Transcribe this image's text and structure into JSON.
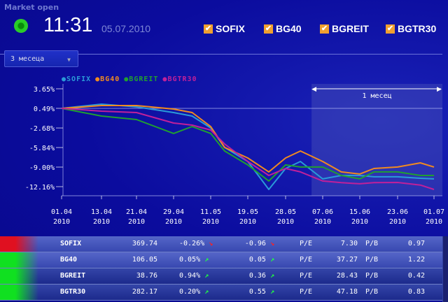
{
  "header": {
    "status": "Market open",
    "status_color": "#30c830",
    "time": "11:31",
    "date": "05.07.2010"
  },
  "toggles": [
    {
      "label": "SOFIX",
      "checked": true
    },
    {
      "label": "BG40",
      "checked": true
    },
    {
      "label": "BGREIT",
      "checked": true
    },
    {
      "label": "BGTR30",
      "checked": true
    }
  ],
  "period_select": {
    "value": "3 месеца"
  },
  "chart_data": {
    "type": "line",
    "range_label": "1 месец",
    "y_ticks": [
      "3.65%",
      "0.49%",
      "-2.68%",
      "-5.84%",
      "-9.00%",
      "-12.16%"
    ],
    "y_tick_values": [
      3.65,
      0.49,
      -2.68,
      -5.84,
      -9.0,
      -12.16
    ],
    "x_ticks": [
      {
        "date": "2010-04-01",
        "day": "01.04",
        "year": "2010"
      },
      {
        "date": "2010-04-13",
        "day": "13.04",
        "year": "2010"
      },
      {
        "date": "2010-04-21",
        "day": "21.04",
        "year": "2010"
      },
      {
        "date": "2010-04-29",
        "day": "29.04",
        "year": "2010"
      },
      {
        "date": "2010-05-11",
        "day": "11.05",
        "year": "2010"
      },
      {
        "date": "2010-05-19",
        "day": "19.05",
        "year": "2010"
      },
      {
        "date": "2010-05-28",
        "day": "28.05",
        "year": "2010"
      },
      {
        "date": "2010-06-07",
        "day": "07.06",
        "year": "2010"
      },
      {
        "date": "2010-06-15",
        "day": "15.06",
        "year": "2010"
      },
      {
        "date": "2010-06-23",
        "day": "23.06",
        "year": "2010"
      },
      {
        "date": "2010-07-01",
        "day": "01.07",
        "year": "2010"
      }
    ],
    "highlight_from": "2010-06-04",
    "dates": [
      "2010-04-01",
      "2010-04-13",
      "2010-04-21",
      "2010-04-29",
      "2010-05-05",
      "2010-05-11",
      "2010-05-14",
      "2010-05-19",
      "2010-05-24",
      "2010-05-28",
      "2010-06-01",
      "2010-06-07",
      "2010-06-11",
      "2010-06-15",
      "2010-06-18",
      "2010-06-23",
      "2010-06-28",
      "2010-07-01"
    ],
    "series": [
      {
        "name": "SOFIX",
        "color": "#2a9ad8",
        "values": [
          0.49,
          1.17,
          0.72,
          -0.19,
          -0.75,
          -2.67,
          -5.83,
          -8.09,
          -12.61,
          -9.22,
          -8.09,
          -10.91,
          -10.35,
          -10.35,
          -10.57,
          -10.57,
          -10.8,
          -10.91
        ]
      },
      {
        "name": "BG40",
        "color": "#f08a20",
        "values": [
          0.49,
          0.94,
          0.94,
          0.38,
          -0.19,
          -2.45,
          -5.83,
          -7.53,
          -9.78,
          -7.53,
          -6.4,
          -8.09,
          -9.78,
          -10.12,
          -9.22,
          -8.99,
          -8.32,
          -8.99
        ]
      },
      {
        "name": "BGREIT",
        "color": "#20a030",
        "values": [
          0.49,
          -0.75,
          -1.32,
          -3.57,
          -2.45,
          -3.57,
          -6.4,
          -8.65,
          -11.25,
          -8.65,
          -8.99,
          -8.99,
          -10.35,
          -10.91,
          -9.78,
          -9.78,
          -10.35,
          -10.35
        ]
      },
      {
        "name": "BGTR30",
        "color": "#c0209a",
        "values": [
          0.49,
          0.04,
          -0.19,
          -1.88,
          -2.22,
          -3.01,
          -5.27,
          -8.09,
          -10.35,
          -9.22,
          -9.78,
          -11.25,
          -11.5,
          -11.7,
          -11.5,
          -11.48,
          -11.9,
          -12.61
        ]
      }
    ]
  },
  "table": {
    "rows": [
      {
        "name": "SOFIX",
        "value": "369.74",
        "change_pct": "-0.26%",
        "change": "-0.96",
        "trend": "down",
        "pe_label": "P/E",
        "pe": "7.30",
        "pb_label": "P/B",
        "pb": "0.97",
        "color": "#e01020"
      },
      {
        "name": "BG40",
        "value": "106.05",
        "change_pct": "0.05%",
        "change": "0.05",
        "trend": "up",
        "pe_label": "P/E",
        "pe": "37.27",
        "pb_label": "P/B",
        "pb": "1.22",
        "color": "#10e020"
      },
      {
        "name": "BGREIT",
        "value": "38.76",
        "change_pct": "0.94%",
        "change": "0.36",
        "trend": "up",
        "pe_label": "P/E",
        "pe": "28.43",
        "pb_label": "P/B",
        "pb": "0.42",
        "color": "#10e020"
      },
      {
        "name": "BGTR30",
        "value": "282.17",
        "change_pct": "0.20%",
        "change": "0.55",
        "trend": "up",
        "pe_label": "P/E",
        "pe": "47.18",
        "pb_label": "P/B",
        "pb": "0.83",
        "color": "#10e020"
      }
    ]
  }
}
